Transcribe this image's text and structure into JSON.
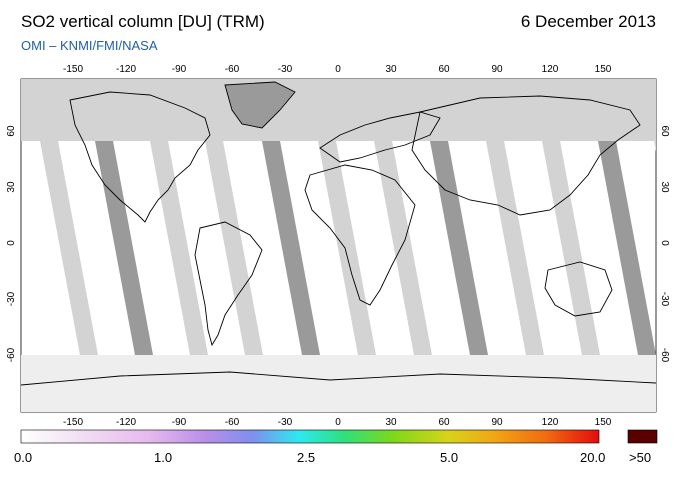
{
  "header": {
    "title": "SO2 vertical column [DU] (TRM)",
    "date": "6 December 2013",
    "subtitle": "OMI  –  KNMI/FMI/NASA"
  },
  "map": {
    "projection": "equirectangular",
    "lon_ticks": [
      "-150",
      "-120",
      "-90",
      "-60",
      "-30",
      "0",
      "30",
      "60",
      "90",
      "120",
      "150"
    ],
    "lat_ticks": [
      "60",
      "30",
      "0",
      "-30",
      "-60"
    ],
    "colors": {
      "ocean": "#ffffff",
      "no_data": "#d3d3d3",
      "no_data_dark": "#9a9a9a",
      "coastline": "#000000"
    }
  },
  "colorbar": {
    "labels": [
      "0.0",
      "1.0",
      "2.5",
      "5.0",
      "20.0",
      ">50"
    ],
    "overflow_color": "#5a0000",
    "gradient": [
      "#ffffff",
      "#f2e0f2",
      "#e7b9ef",
      "#b98ee8",
      "#7f8fef",
      "#2ee8f0",
      "#2fe07a",
      "#7ad81c",
      "#d8d21a",
      "#f1a516",
      "#f06a10",
      "#e10d0d"
    ]
  }
}
